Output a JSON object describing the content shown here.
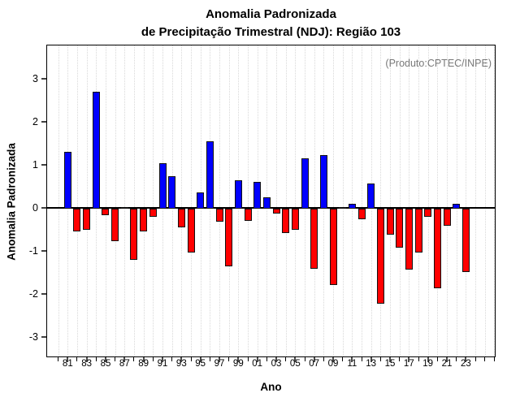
{
  "chart_data": {
    "type": "bar",
    "title": "Anomalia Padronizada de Precipitação Trimestral (NDJ): Região 103",
    "title_line1": "Anomalia Padronizada",
    "title_line2": "de Precipitação Trimestral (NDJ): Região 103",
    "annotation": "(Produto:CPTEC/INPE)",
    "xlabel": "Ano",
    "ylabel": "Anomalia Padronizada",
    "ylim": [
      -3.48,
      3.8
    ],
    "yticks": [
      "3",
      "2",
      "1",
      "0",
      "-1",
      "-2",
      "-3"
    ],
    "ytick_values": [
      3,
      2,
      1,
      0,
      -1,
      -2,
      -3
    ],
    "xtick_labels": [
      "81",
      "83",
      "85",
      "87",
      "89",
      "91",
      "93",
      "95",
      "97",
      "99",
      "01",
      "03",
      "05",
      "07",
      "09",
      "11",
      "13",
      "15",
      "17",
      "19",
      "21",
      "23"
    ],
    "tick_year_range": [
      1980,
      2026
    ],
    "grid": "vertical-dotted",
    "legend": "none",
    "positive_color": "#0000ff",
    "negative_color": "#ff0000",
    "bar_border_color": "#111111",
    "years": [
      1981,
      1982,
      1983,
      1984,
      1985,
      1986,
      1987,
      1988,
      1989,
      1990,
      1991,
      1992,
      1993,
      1994,
      1995,
      1996,
      1997,
      1998,
      1999,
      2000,
      2001,
      2002,
      2003,
      2004,
      2005,
      2006,
      2007,
      2008,
      2009,
      2010,
      2011,
      2012,
      2013,
      2014,
      2015,
      2016,
      2017,
      2018,
      2019,
      2020,
      2021,
      2022,
      2023
    ],
    "values": [
      1.33,
      -0.52,
      -0.49,
      2.72,
      -0.15,
      -0.76,
      0.03,
      -1.19,
      -0.53,
      -0.19,
      1.06,
      0.75,
      -0.44,
      -1.03,
      0.38,
      1.56,
      -0.3,
      -1.34,
      0.66,
      -0.29,
      0.62,
      0.27,
      -0.11,
      -0.57,
      -0.49,
      1.18,
      -1.4,
      1.24,
      -1.78,
      0.04,
      0.11,
      -0.25,
      0.59,
      -2.21,
      -0.61,
      -0.91,
      -1.42,
      -1.02,
      -0.19,
      -1.86,
      -0.4,
      0.11,
      -1.47
    ]
  }
}
